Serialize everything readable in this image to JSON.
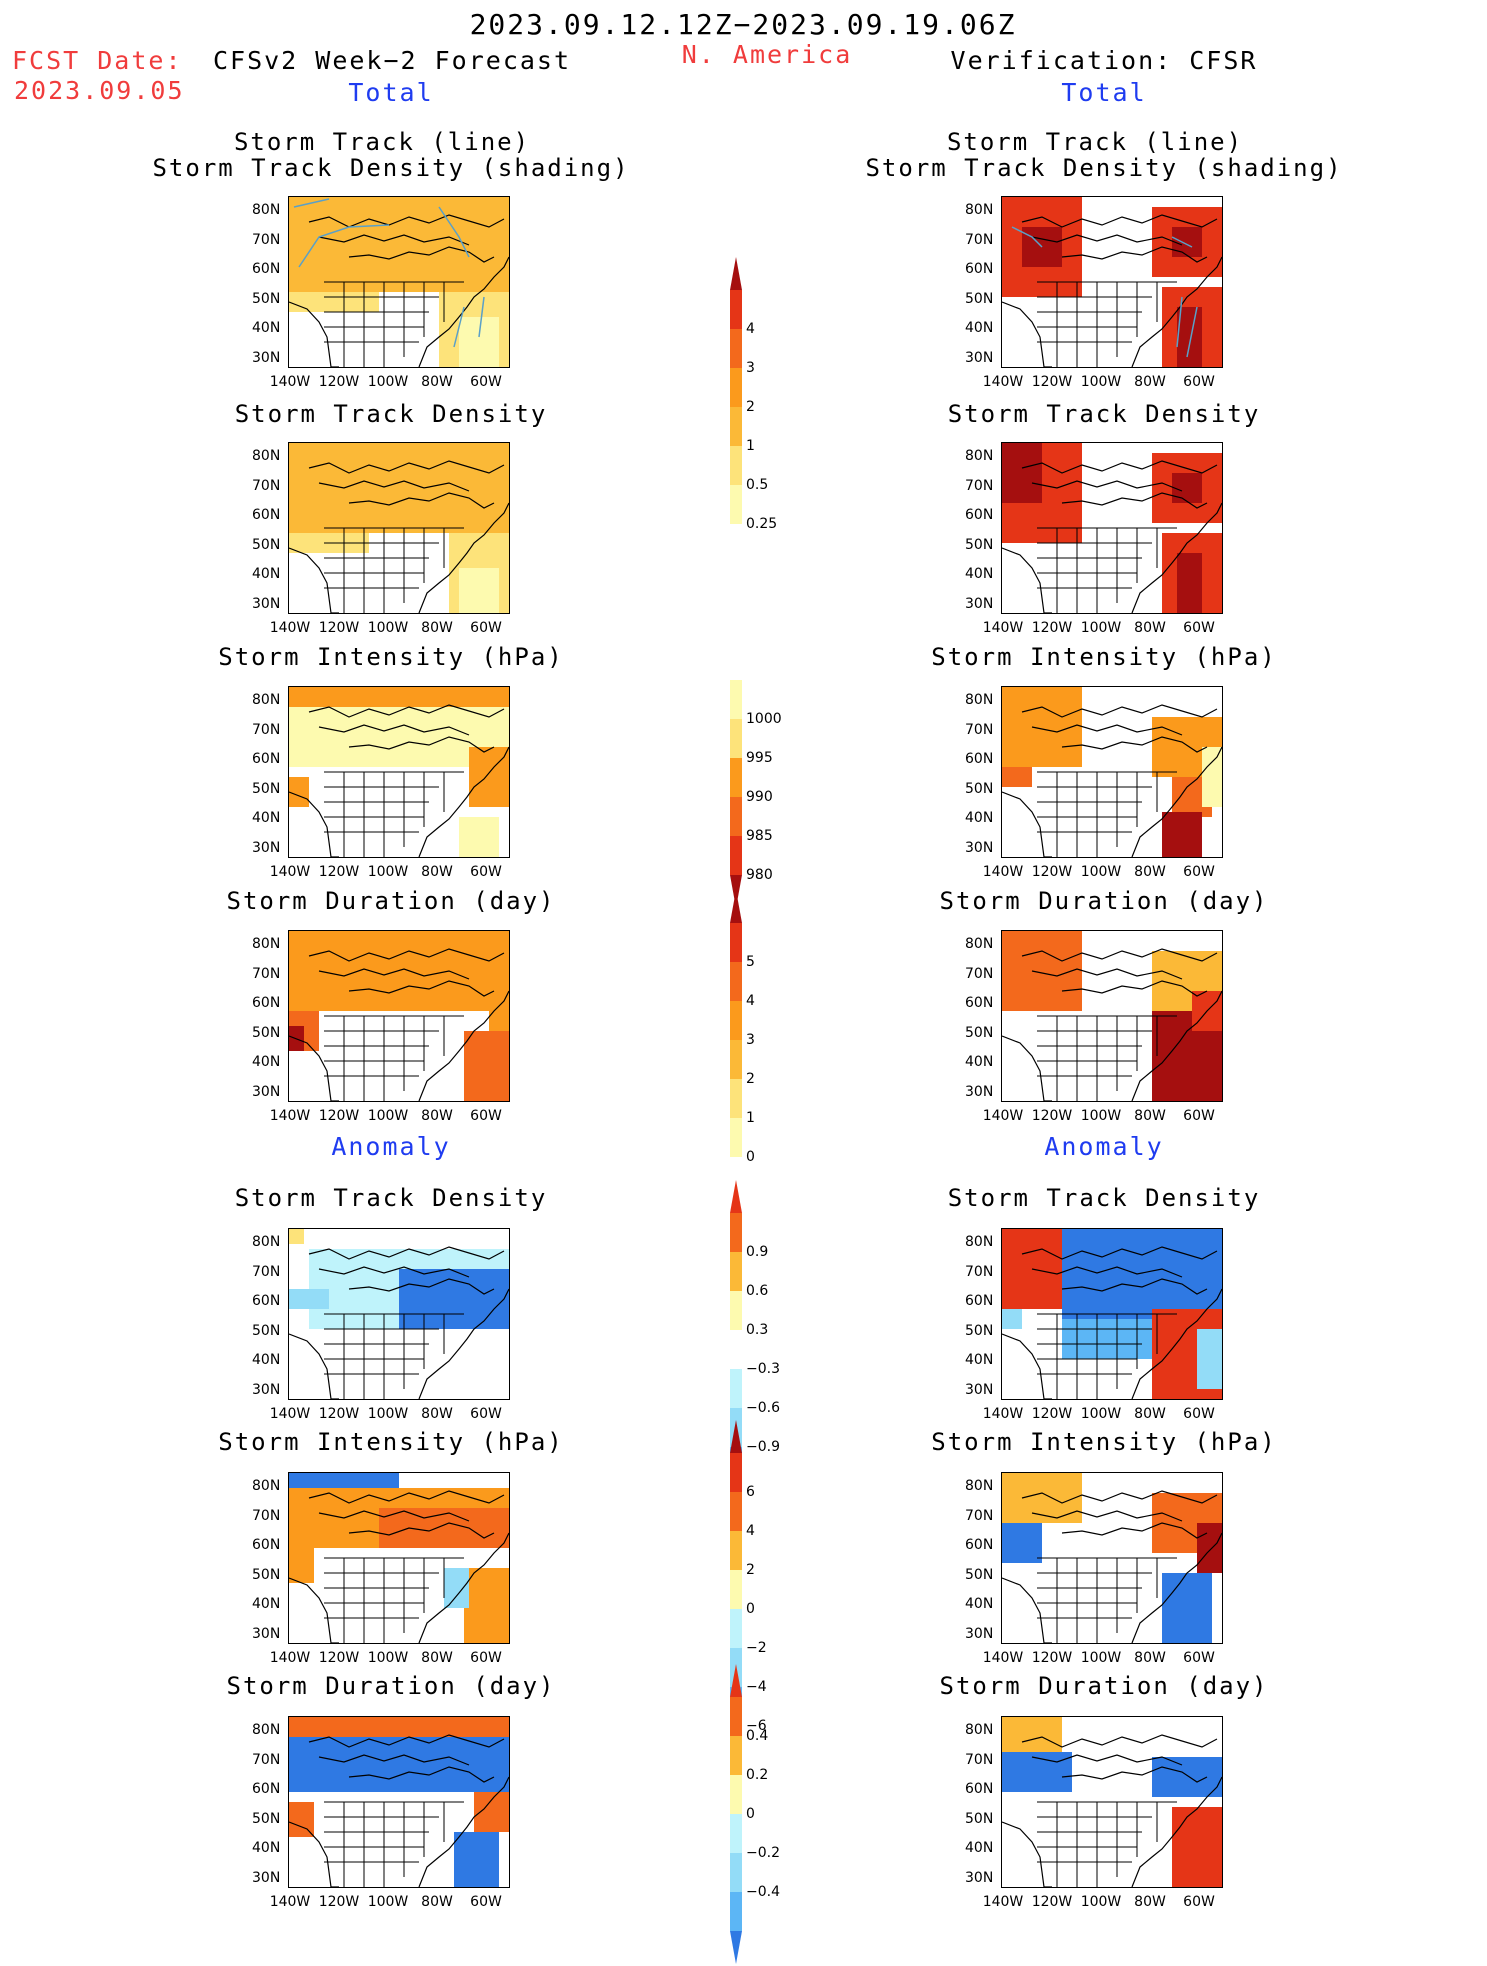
{
  "header": {
    "date_range": "2023.09.12.12Z−2023.09.19.06Z",
    "fcst_label": "FCST Date:",
    "fcst_date": "2023.09.05",
    "model_title": "CFSv2 Week−2 Forecast",
    "region": "N. America",
    "verification_title": "Verification: CFSR"
  },
  "sections": {
    "total": "Total",
    "anomaly": "Anomaly"
  },
  "panel_titles": {
    "track_line": "Storm Track (line)",
    "track_density_shading": "Storm Track Density (shading)",
    "track_density": "Storm Track Density",
    "intensity": "Storm Intensity (hPa)",
    "duration": "Storm Duration (day)"
  },
  "axes": {
    "lat_labels": [
      "80N",
      "70N",
      "60N",
      "50N",
      "40N",
      "30N"
    ],
    "lon_labels": [
      "140W",
      "120W",
      "100W",
      "80W",
      "60W"
    ]
  },
  "colorbars": {
    "track_density_total": [
      "4",
      "3",
      "2",
      "1",
      "0.5",
      "0.25"
    ],
    "intensity_total": [
      "1000",
      "995",
      "990",
      "985",
      "980"
    ],
    "duration_total": [
      "5",
      "4",
      "3",
      "2",
      "1",
      "0"
    ],
    "track_density_anom": [
      "0.9",
      "0.6",
      "0.3",
      "−0.3",
      "−0.6",
      "−0.9"
    ],
    "intensity_anom": [
      "6",
      "4",
      "2",
      "0",
      "−2",
      "−4",
      "−6"
    ],
    "duration_anom": [
      "0.4",
      "0.2",
      "0",
      "−0.2",
      "−0.4"
    ]
  },
  "colors": {
    "header_red": "#f03c3c",
    "section_blue": "#1f3cf0",
    "warm_scale": [
      "#fdfaaf",
      "#fde37a",
      "#fbb937",
      "#fb9a1c",
      "#f3691c",
      "#e53517",
      "#a50f0f"
    ],
    "cool_scale": [
      "#bff3fb",
      "#93dcf7",
      "#5cb6f5",
      "#2f79e3"
    ]
  }
}
